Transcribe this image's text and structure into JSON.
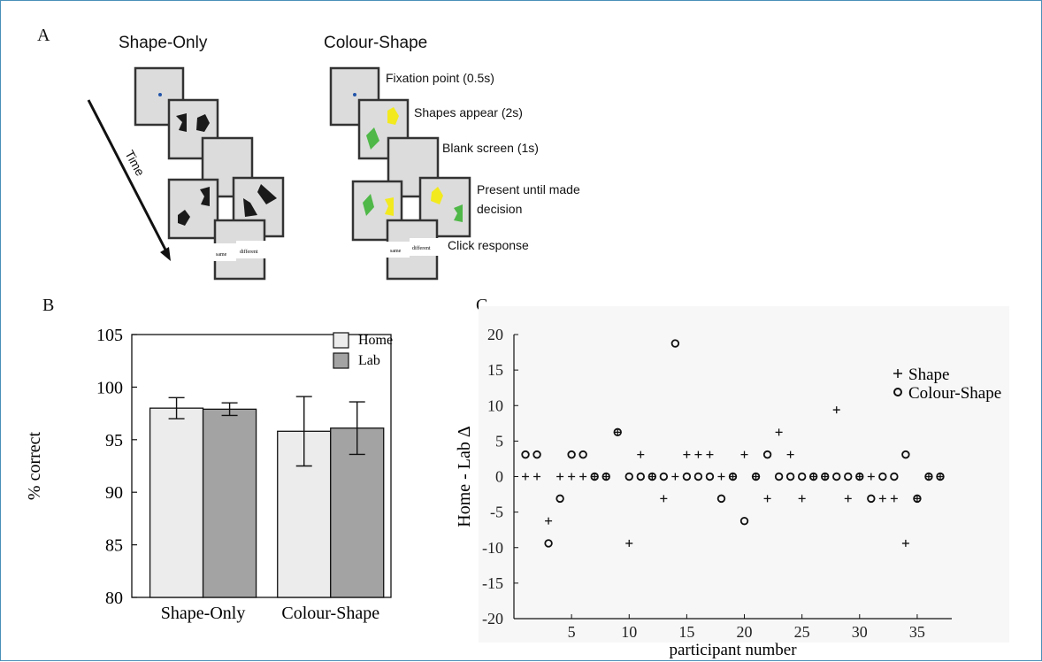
{
  "panels": {
    "a": "A",
    "b": "B",
    "c": "C"
  },
  "schematic": {
    "titles": [
      "Shape-Only",
      "Colour-Shape"
    ],
    "time_label": "Time",
    "step_labels": [
      "Fixation point (0.5s)",
      "Shapes appear (2s)",
      "Blank screen (1s)",
      "Present until made",
      "decision",
      "Click response"
    ],
    "response_buttons": [
      "same",
      "different"
    ],
    "colors": {
      "green": "#4fb848",
      "yellow": "#f2ea1e",
      "black": "#1a1a1a",
      "fixation": "#2255aa"
    }
  },
  "chart_data": [
    {
      "type": "bar",
      "categories": [
        "Shape-Only",
        "Colour-Shape"
      ],
      "series": [
        {
          "name": "Home",
          "values": [
            98.0,
            95.8
          ],
          "error": [
            1.0,
            3.3
          ],
          "color": "#ececec"
        },
        {
          "name": "Lab",
          "values": [
            97.9,
            96.1
          ],
          "error": [
            0.6,
            2.5
          ],
          "color": "#a3a3a3"
        }
      ],
      "title": "",
      "xlabel": "",
      "ylabel": "% correct",
      "ylim": [
        80,
        105
      ],
      "yticks": [
        "80",
        "85",
        "90",
        "95",
        "100",
        "105"
      ],
      "legend": "top-right",
      "grid": false
    },
    {
      "type": "scatter",
      "xlabel": "participant number",
      "ylabel": "Home - Lab Δ",
      "xlim": [
        0,
        38
      ],
      "ylim": [
        -20,
        20
      ],
      "xticks": [
        "5",
        "10",
        "15",
        "20",
        "25",
        "30",
        "35"
      ],
      "yticks": [
        "-20",
        "-15",
        "-10",
        "-5",
        "0",
        "5",
        "10",
        "15",
        "20"
      ],
      "legend": "top-right",
      "grid": false,
      "series": [
        {
          "name": "Shape",
          "marker": "+",
          "x": [
            1,
            2,
            3,
            4,
            5,
            6,
            7,
            8,
            9,
            10,
            11,
            12,
            13,
            14,
            15,
            16,
            17,
            18,
            19,
            20,
            21,
            22,
            23,
            24,
            25,
            26,
            27,
            28,
            29,
            30,
            31,
            32,
            33,
            34,
            35,
            36,
            37
          ],
          "y": [
            0,
            0,
            -6.25,
            0,
            0,
            0,
            0,
            0,
            6.25,
            -9.4,
            3.1,
            0,
            -3.1,
            0,
            3.1,
            3.1,
            3.1,
            0,
            0,
            3.1,
            0,
            -3.1,
            6.25,
            3.1,
            -3.1,
            0,
            0,
            9.4,
            -3.1,
            0,
            0,
            -3.1,
            -3.1,
            -9.4,
            -3.1,
            0,
            0
          ]
        },
        {
          "name": "Colour-Shape",
          "marker": "o",
          "x": [
            1,
            2,
            3,
            4,
            5,
            6,
            7,
            8,
            9,
            10,
            11,
            12,
            13,
            14,
            15,
            16,
            17,
            18,
            19,
            20,
            21,
            22,
            23,
            24,
            25,
            26,
            27,
            28,
            29,
            30,
            31,
            32,
            33,
            34,
            35,
            36,
            37
          ],
          "y": [
            3.1,
            3.1,
            -9.4,
            -3.1,
            3.1,
            3.1,
            0,
            0,
            6.25,
            0,
            0,
            0,
            0,
            18.75,
            0,
            0,
            0,
            -3.1,
            0,
            -6.25,
            0,
            3.1,
            0,
            0,
            0,
            0,
            0,
            0,
            0,
            0,
            -3.1,
            0,
            0,
            3.1,
            -3.1,
            0,
            0
          ]
        }
      ]
    }
  ]
}
